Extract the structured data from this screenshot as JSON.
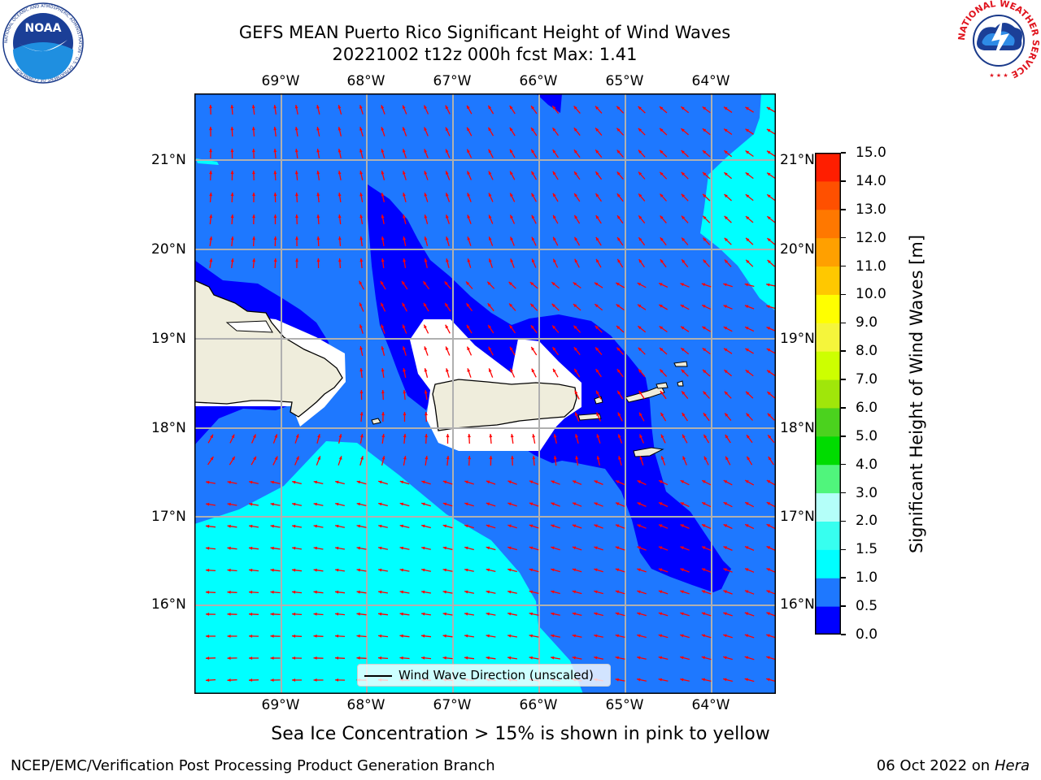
{
  "header": {
    "title_line1": "GEFS MEAN Puerto Rico Significant Height of Wind Waves",
    "title_line2": "20221002 t12z 000h fcst   Max: 1.41"
  },
  "map": {
    "lat_labels": [
      "21°N",
      "20°N",
      "19°N",
      "18°N",
      "17°N",
      "16°N"
    ],
    "lon_labels": [
      "69°W",
      "68°W",
      "67°W",
      "66°W",
      "65°W",
      "64°W"
    ],
    "legend_label": "Wind Wave Direction (unscaled)",
    "arrow_color": "#ff0000",
    "land_color": "#efeddc",
    "mask_color": "#ffffff"
  },
  "colorbar": {
    "title": "Significant Height of Wind Waves [m]",
    "tick_labels": [
      "0.0",
      "0.5",
      "1.0",
      "1.5",
      "2.0",
      "3.0",
      "4.0",
      "5.0",
      "6.0",
      "7.0",
      "8.0",
      "9.0",
      "10.0",
      "11.0",
      "12.0",
      "13.0",
      "14.0",
      "15.0"
    ],
    "colors": [
      "#0000ff",
      "#1e78ff",
      "#00ffff",
      "#37ffef",
      "#b4fff9",
      "#50f57c",
      "#00dc00",
      "#4bd21e",
      "#a0e60a",
      "#cdff00",
      "#f5f53b",
      "#ffff00",
      "#ffc800",
      "#ffa000",
      "#ff7800",
      "#ff5000",
      "#ff1e00"
    ]
  },
  "footer": {
    "ice_note": "Sea Ice Concentration > 15% is shown in pink to yellow",
    "credit": "NCEP/EMC/Verification Post Processing Product Generation Branch",
    "date_prefix": "06 Oct 2022 on ",
    "machine": "Hera"
  },
  "logos": {
    "noaa_text": "NOAA",
    "noaa_ring": "NATIONAL OCEANIC AND ATMOSPHERIC ADMINISTRATION · U.S. DEPARTMENT OF COMMERCE",
    "nws_ring": "NATIONAL WEATHER SERVICE"
  }
}
